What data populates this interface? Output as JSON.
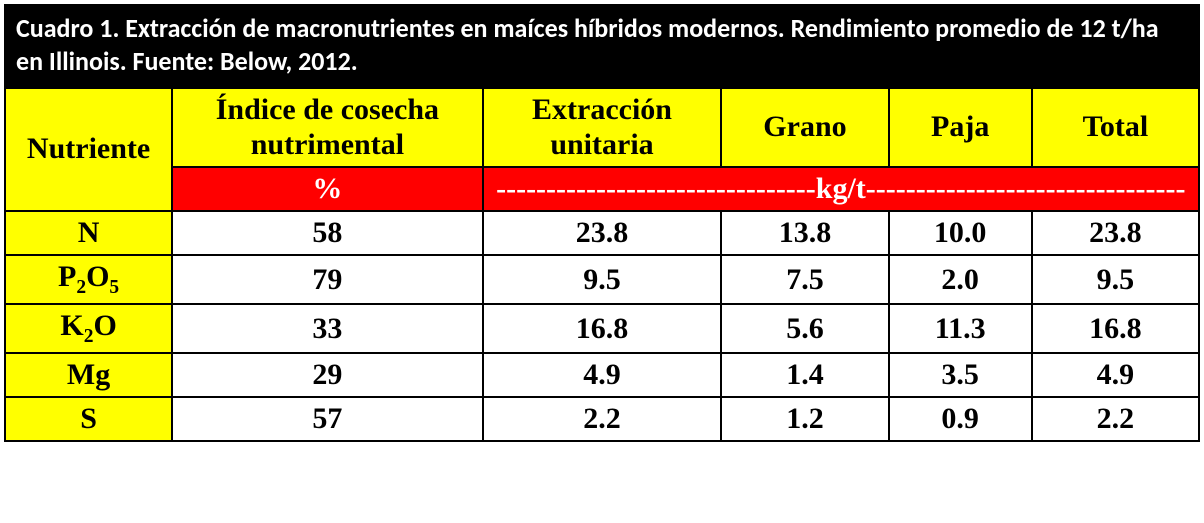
{
  "title": "Cuadro 1. Extracción de macronutrientes en maíces híbridos modernos. Rendimiento promedio de 12 t/ha en Illinois. Fuente: Below, 2012.",
  "colors": {
    "title_bg": "#000000",
    "title_text": "#ffffff",
    "header_yellow": "#ffff00",
    "unit_red": "#ff0000",
    "unit_text": "#ffffff",
    "border": "#000000",
    "data_bg": "#ffffff",
    "data_text": "#000000"
  },
  "typography": {
    "title_font": "Calibri",
    "title_size_pt": 20,
    "table_font": "Times New Roman",
    "table_size_pt": 22,
    "weight": "bold"
  },
  "col_widths_pct": [
    14,
    26,
    20,
    14,
    12,
    14
  ],
  "headers": {
    "nutriente": "Nutriente",
    "indice_l1": "Índice de cosecha",
    "indice_l2": "nutrimental",
    "extraccion_l1": "Extracción",
    "extraccion_l2": "unitaria",
    "grano": "Grano",
    "paja": "Paja",
    "total": "Total"
  },
  "units": {
    "percent": "%",
    "kg_per_t": "--------------------------------kg/t--------------------------------"
  },
  "rows": [
    {
      "nutriente_html": "N",
      "indice": "58",
      "extraccion": "23.8",
      "grano": "13.8",
      "paja": "10.0",
      "total": "23.8"
    },
    {
      "nutriente_html": "P<sub>2</sub>O<sub>5</sub>",
      "indice": "79",
      "extraccion": "9.5",
      "grano": "7.5",
      "paja": "2.0",
      "total": "9.5"
    },
    {
      "nutriente_html": "K<sub>2</sub>O",
      "indice": "33",
      "extraccion": "16.8",
      "grano": "5.6",
      "paja": "11.3",
      "total": "16.8"
    },
    {
      "nutriente_html": "Mg",
      "indice": "29",
      "extraccion": "4.9",
      "grano": "1.4",
      "paja": "3.5",
      "total": "4.9"
    },
    {
      "nutriente_html": "S",
      "indice": "57",
      "extraccion": "2.2",
      "grano": "1.2",
      "paja": "0.9",
      "total": "2.2"
    }
  ]
}
